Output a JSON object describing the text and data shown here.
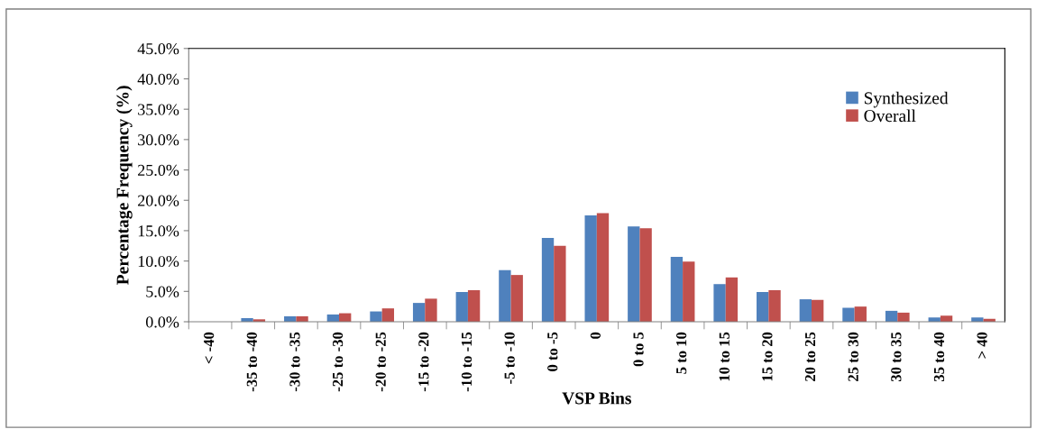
{
  "chart_data": {
    "type": "bar",
    "xlabel": "VSP Bins",
    "ylabel": "Percentage Frequency (%)",
    "categories": [
      "< -40",
      "-35 to -40",
      "-30 to -35",
      "-25 to -30",
      "-20 to -25",
      "-15 to -20",
      "-10 to -15",
      "-5 to -10",
      "0 to -5",
      "0",
      "0 to 5",
      "5 to 10",
      "10 to 15",
      "15 to 20",
      "20 to 25",
      "25 to 30",
      "30 to 35",
      "35 to 40",
      "> 40"
    ],
    "series": [
      {
        "name": "Synthesized",
        "color": "#4f81bd",
        "values": [
          0,
          0.6,
          0.9,
          1.2,
          1.7,
          3.1,
          4.9,
          8.5,
          13.8,
          17.5,
          15.7,
          10.7,
          6.2,
          4.9,
          3.7,
          2.3,
          1.8,
          0.7,
          0.7
        ]
      },
      {
        "name": "Overall",
        "color": "#c0504d",
        "values": [
          0,
          0.4,
          0.9,
          1.4,
          2.2,
          3.8,
          5.2,
          7.7,
          12.5,
          17.9,
          15.4,
          9.9,
          7.3,
          5.2,
          3.6,
          2.5,
          1.5,
          1.0,
          0.5
        ]
      }
    ],
    "ylim": [
      0,
      45
    ],
    "yticks": [
      {
        "value": 0,
        "label": "0.0%"
      },
      {
        "value": 5,
        "label": "5.0%"
      },
      {
        "value": 10,
        "label": "10.0%"
      },
      {
        "value": 15,
        "label": "15.0%"
      },
      {
        "value": 20,
        "label": "20.0%"
      },
      {
        "value": 25,
        "label": "25.0%"
      },
      {
        "value": 30,
        "label": "30.0%"
      },
      {
        "value": 35,
        "label": "35.0%"
      },
      {
        "value": 40,
        "label": "40.0%"
      },
      {
        "value": 45,
        "label": "45.0%"
      }
    ],
    "grid": false,
    "legend": "top right"
  }
}
